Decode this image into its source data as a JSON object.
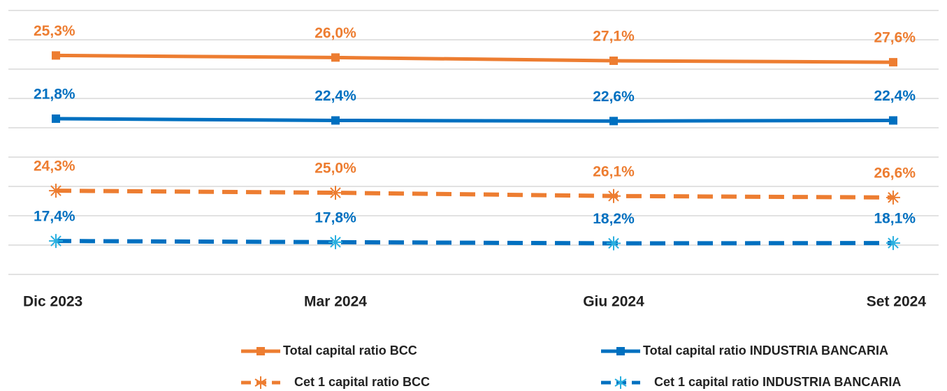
{
  "chart_data": {
    "type": "line",
    "categories": [
      "Dic 2023",
      "Mar 2024",
      "Giu 2024",
      "Set 2024"
    ],
    "series": [
      {
        "name": "Total capital ratio BCC",
        "color": "#ed7d31",
        "marker_color": "#ed7d31",
        "marker": "square",
        "dashed": false,
        "ylim": [
          100,
          10
        ],
        "values": [
          25.3,
          26.0,
          27.1,
          27.6
        ],
        "value_labels": [
          "25,3%",
          "26,0%",
          "27,1%",
          "27,6%"
        ]
      },
      {
        "name": "Total capital ratio INDUSTRIA BANCARIA",
        "color": "#0070c0",
        "marker_color": "#0070c0",
        "marker": "square",
        "dashed": false,
        "ylim": [
          75,
          -15
        ],
        "values": [
          21.8,
          22.4,
          22.6,
          22.4
        ],
        "value_labels": [
          "21,8%",
          "22,4%",
          "22,6%",
          "22,4%"
        ]
      },
      {
        "name": "Cet 1 capital ratio BCC",
        "color": "#ed7d31",
        "marker_color": "#ed7d31",
        "marker": "star",
        "dashed": true,
        "ylim": [
          53,
          -37
        ],
        "values": [
          24.3,
          25.0,
          26.1,
          26.6
        ],
        "value_labels": [
          "24,3%",
          "25,0%",
          "26,1%",
          "26,6%"
        ]
      },
      {
        "name": "Cet 1 capital ratio INDUSTRIA BANCARIA",
        "color": "#0070c0",
        "marker_color": "#2ab0e0",
        "marker": "star",
        "dashed": true,
        "ylim": [
          29,
          -61
        ],
        "values": [
          17.4,
          17.8,
          18.2,
          18.1
        ],
        "value_labels": [
          "17,4%",
          "17,8%",
          "18,2%",
          "18,1%"
        ]
      }
    ]
  }
}
